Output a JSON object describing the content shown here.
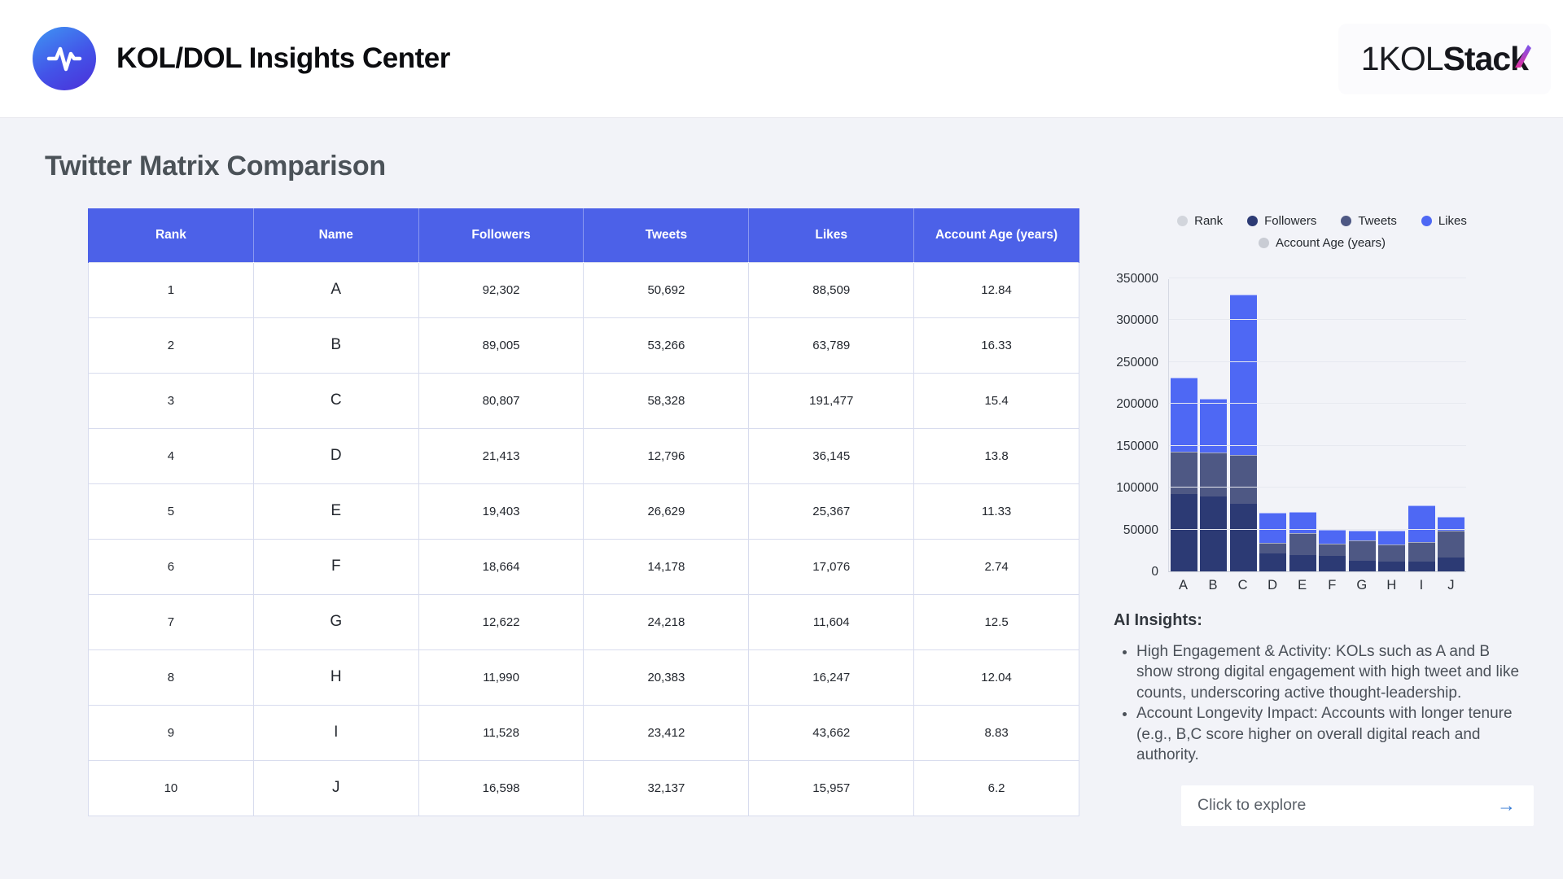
{
  "header": {
    "app_title": "KOL/DOL Insights Center",
    "brand_light": "1KOL",
    "brand_bold": "Stack"
  },
  "page": {
    "title": "Twitter Matrix Comparison"
  },
  "table": {
    "columns": [
      "Rank",
      "Name",
      "Followers",
      "Tweets",
      "Likes",
      "Account Age (years)"
    ],
    "rows": [
      [
        "1",
        "A",
        "92,302",
        "50,692",
        "88,509",
        "12.84"
      ],
      [
        "2",
        "B",
        "89,005",
        "53,266",
        "63,789",
        "16.33"
      ],
      [
        "3",
        "C",
        "80,807",
        "58,328",
        "191,477",
        "15.4"
      ],
      [
        "4",
        "D",
        "21,413",
        "12,796",
        "36,145",
        "13.8"
      ],
      [
        "5",
        "E",
        "19,403",
        "26,629",
        "25,367",
        "11.33"
      ],
      [
        "6",
        "F",
        "18,664",
        "14,178",
        "17,076",
        "2.74"
      ],
      [
        "7",
        "G",
        "12,622",
        "24,218",
        "11,604",
        "12.5"
      ],
      [
        "8",
        "H",
        "11,990",
        "20,383",
        "16,247",
        "12.04"
      ],
      [
        "9",
        "I",
        "11,528",
        "23,412",
        "43,662",
        "8.83"
      ],
      [
        "10",
        "J",
        "16,598",
        "32,137",
        "15,957",
        "6.2"
      ]
    ]
  },
  "chart_data": {
    "type": "bar",
    "stacked": true,
    "categories": [
      "A",
      "B",
      "C",
      "D",
      "E",
      "F",
      "G",
      "H",
      "I",
      "J"
    ],
    "series": [
      {
        "name": "Rank",
        "color": "#d2d5dc",
        "values": [
          1,
          2,
          3,
          4,
          5,
          6,
          7,
          8,
          9,
          10
        ]
      },
      {
        "name": "Followers",
        "color": "#2c3a74",
        "values": [
          92302,
          89005,
          80807,
          21413,
          19403,
          18664,
          12622,
          11990,
          11528,
          16598
        ]
      },
      {
        "name": "Tweets",
        "color": "#4e5884",
        "values": [
          50692,
          53266,
          58328,
          12796,
          26629,
          14178,
          24218,
          20383,
          23412,
          32137
        ]
      },
      {
        "name": "Likes",
        "color": "#4e68f4",
        "values": [
          88509,
          63789,
          191477,
          36145,
          25367,
          17076,
          11604,
          16247,
          43662,
          15957
        ]
      },
      {
        "name": "Account Age (years)",
        "color": "#c9ccd4",
        "values": [
          12.84,
          16.33,
          15.4,
          13.8,
          11.33,
          2.74,
          12.5,
          12.04,
          8.83,
          6.2
        ]
      }
    ],
    "title": "",
    "xlabel": "",
    "ylabel": "",
    "ylim": [
      0,
      350000
    ],
    "ytick_step": 50000,
    "grid": true,
    "legend_position": "top"
  },
  "insights": {
    "heading": "AI Insights:",
    "bullets": [
      "High Engagement & Activity: KOLs such as A and B show strong digital engagement with high tweet and like counts, underscoring active thought-leadership.",
      "Account Longevity Impact: Accounts with longer tenure (e.g., B,C score higher on overall digital reach and authority."
    ]
  },
  "explore": {
    "label": "Click to explore",
    "arrow": "→"
  },
  "colors": {
    "table_header_bg": "#4c61e8",
    "accent_blue": "#4e68f4",
    "navy": "#2c3a74",
    "slate": "#4e5884",
    "arrow_blue": "#2f76d3",
    "page_bg": "#f2f3f8"
  }
}
